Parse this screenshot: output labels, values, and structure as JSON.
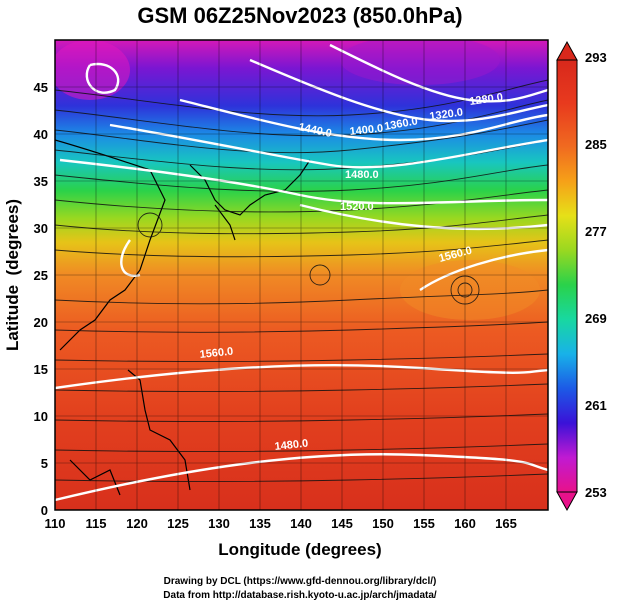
{
  "title": "GSM 06Z25Nov2023 (850.0hPa)",
  "xlabel": "Longitude (degrees)",
  "ylabel": "Latitude  (degrees)",
  "credits": [
    "Drawing by DCL (https://www.gfd-dennou.org/library/dcl/)",
    "Data from http://database.rish.kyoto-u.ac.jp/arch/jmadata/"
  ],
  "chart_data": {
    "type": "heatmap",
    "xlim": [
      110,
      170
    ],
    "ylim": [
      0,
      50
    ],
    "x_ticks": [
      "110",
      "115",
      "120",
      "125",
      "130",
      "135",
      "140",
      "145",
      "150",
      "155",
      "160",
      "165"
    ],
    "y_ticks": [
      "0",
      "5",
      "10",
      "15",
      "20",
      "25",
      "30",
      "35",
      "40",
      "45"
    ],
    "grid": true,
    "colorbar": {
      "min": 253,
      "max": 293,
      "labels": [
        "293",
        "285",
        "277",
        "269",
        "261",
        "253"
      ],
      "colors": [
        "#e8128a",
        "#c01ad2",
        "#3a12d8",
        "#1c5ae6",
        "#18b2e8",
        "#18d8a0",
        "#2ad24a",
        "#9ad820",
        "#e6e018",
        "#f6a018",
        "#f06a20",
        "#e83a1e",
        "#d8281c"
      ]
    },
    "contours": [
      {
        "label": "1320.0"
      },
      {
        "label": "1360.0"
      },
      {
        "label": "1400.0"
      },
      {
        "label": "1440.0"
      },
      {
        "label": "1480.0"
      },
      {
        "label": "1520.0"
      },
      {
        "label": "1560.0"
      },
      {
        "label": "1280.0"
      }
    ]
  }
}
